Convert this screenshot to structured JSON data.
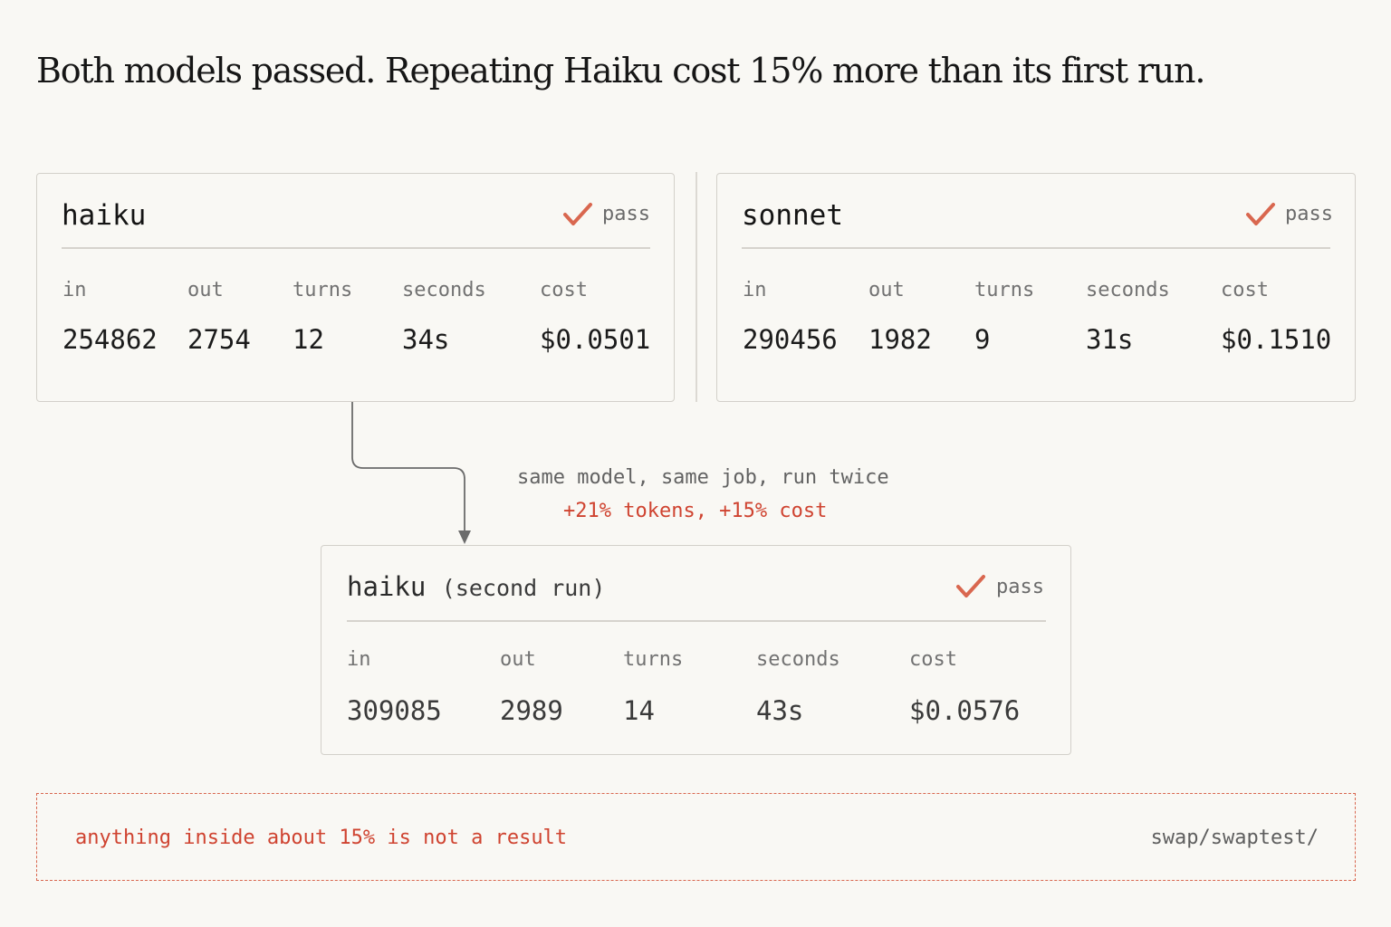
{
  "headline": "Both models passed. Repeating Haiku cost 15% more than its first run.",
  "metric_labels": {
    "in": "in",
    "out": "out",
    "turns": "turns",
    "seconds": "seconds",
    "cost": "cost"
  },
  "cards": {
    "haiku": {
      "name": "haiku",
      "status": "pass",
      "metrics": {
        "in": "254862",
        "out": "2754",
        "turns": "12",
        "seconds": "34s",
        "cost": "$0.0501"
      }
    },
    "sonnet": {
      "name": "sonnet",
      "status": "pass",
      "metrics": {
        "in": "290456",
        "out": "1982",
        "turns": "9",
        "seconds": "31s",
        "cost": "$0.1510"
      }
    },
    "haiku_second": {
      "name": "haiku",
      "subtitle": "(second run)",
      "status": "pass",
      "metrics": {
        "in": "309085",
        "out": "2989",
        "turns": "14",
        "seconds": "43s",
        "cost": "$0.0576"
      }
    }
  },
  "connector": {
    "note": "same model, same job, run twice",
    "delta": "+21% tokens, +15% cost"
  },
  "caveat": {
    "text": "anything inside about 15% is not a result",
    "path": "swap/swaptest/"
  },
  "colors": {
    "accent": "#cf4330",
    "check": "#d9674f",
    "border": "#d3d0ca",
    "background": "#f9f8f4"
  },
  "icons": {
    "status": "checkmark-icon"
  }
}
